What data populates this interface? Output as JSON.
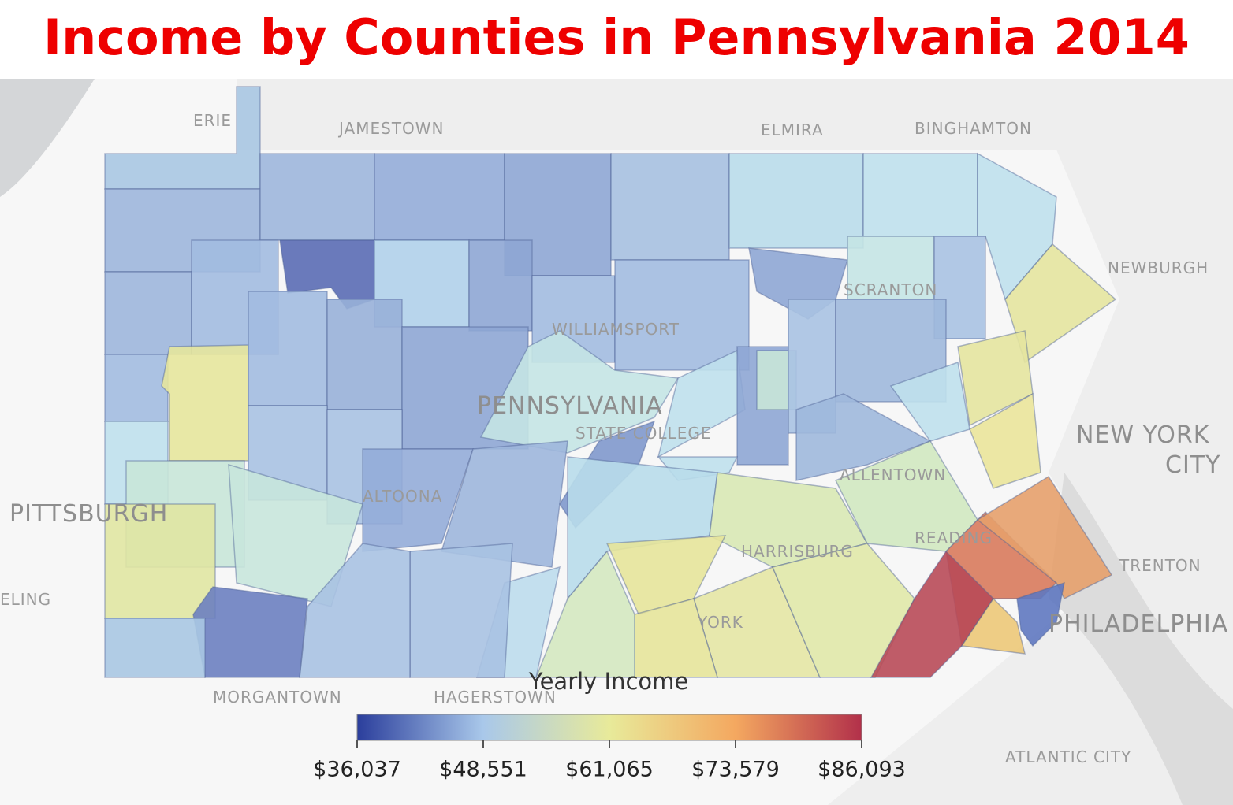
{
  "title": "Income by Counties in Pennsylvania 2014",
  "map_labels": [
    "ERIE",
    "JAMESTOWN",
    "ELMIRA",
    "BINGHAMTON",
    "NEWBURGH",
    "WILLIAMSPORT",
    "PENNSYLVANIA",
    "STATE COLLEGE",
    "SCRANTON",
    "ALLENTOWN",
    "PITTSBURGH",
    "ALTOONA",
    "HARRISBURG",
    "READING",
    "YORK",
    "TRENTON",
    "PHILADELPHIA",
    "NEW YORK",
    "CITY",
    "MORGANTOWN",
    "HAGERSTOWN",
    "ATLANTIC CITY",
    "ELING"
  ],
  "legend": {
    "title": "Yearly Income",
    "colors": [
      "#2b3e9c",
      "#a9c8ea",
      "#e8ea9a",
      "#f4a860",
      "#b2304a"
    ],
    "ticks": [
      {
        "value": 36037,
        "label": "$36,037"
      },
      {
        "value": 48551,
        "label": "$48,551"
      },
      {
        "value": 61065,
        "label": "$61,065"
      },
      {
        "value": 73579,
        "label": "$73,579"
      },
      {
        "value": 86093,
        "label": "$86,093"
      }
    ]
  }
}
